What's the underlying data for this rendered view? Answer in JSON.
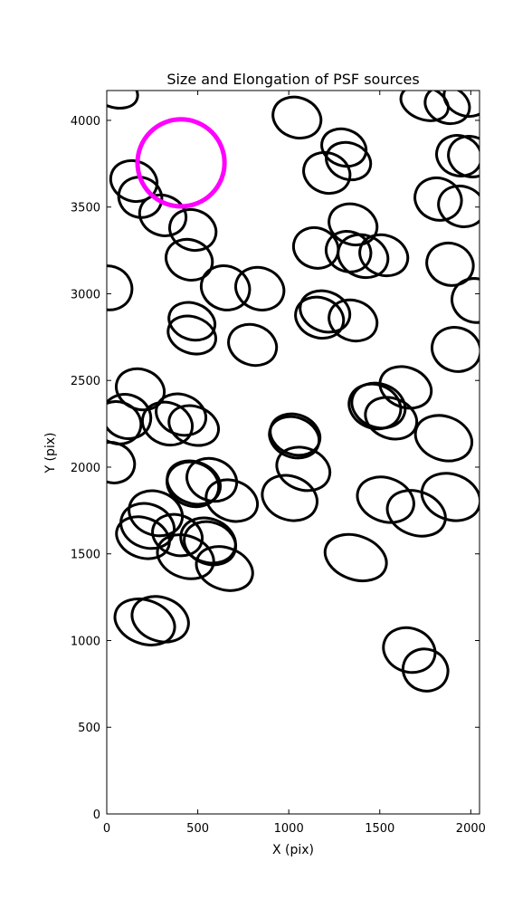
{
  "chart_data": {
    "type": "ellipse",
    "title": "Size and Elongation of PSF sources",
    "xlabel": "X (pix)",
    "ylabel": "Y (pix)",
    "xlim": [
      0,
      2048
    ],
    "ylim": [
      0,
      4172
    ],
    "xticks": [
      0,
      500,
      1000,
      1500,
      2000
    ],
    "yticks": [
      0,
      500,
      1000,
      1500,
      2000,
      2500,
      3000,
      3500,
      4000
    ],
    "series": [
      {
        "color": "#000000",
        "linewidth": 3,
        "angle": -20,
        "x": [
          35,
          1045,
          1303,
          1328,
          1209,
          149,
          184,
          308,
          473,
          453,
          1353,
          1149,
          1328,
          1408,
          1522,
          10,
          652,
          841,
          1199,
          1169,
          1353,
          468,
          468,
          801,
          1746,
          1871,
          1975,
          1935,
          2000,
          1821,
          1950,
          1886,
          2025,
          1920,
          184,
          109,
          60,
          30,
          408,
          333,
          478,
          1035,
          1030,
          1080,
          1005,
          1642,
          1493,
          1473,
          1562,
          1851,
          478,
          473,
          577,
          687,
          269,
          224,
          199,
          388,
          557,
          567,
          433,
          647,
          1532,
          1701,
          1891,
          1368,
          294,
          209,
          1662,
          1751
        ],
        "y": [
          4172,
          4016,
          3843,
          3765,
          3697,
          3650,
          3556,
          3452,
          3368,
          3196,
          3400,
          3264,
          3243,
          3217,
          3222,
          3034,
          3034,
          3029,
          2898,
          2862,
          2846,
          2841,
          2762,
          2705,
          4099,
          4089,
          4131,
          3796,
          3791,
          3546,
          3504,
          3170,
          2961,
          2679,
          2449,
          2292,
          2256,
          2026,
          2303,
          2251,
          2240,
          2188,
          2172,
          1990,
          1822,
          2460,
          2355,
          2350,
          2282,
          2167,
          1911,
          1901,
          1927,
          1807,
          1734,
          1661,
          1593,
          1608,
          1577,
          1561,
          1483,
          1415,
          1812,
          1734,
          1828,
          1478,
          1123,
          1107,
          945,
          830
        ],
        "width": [
          279,
          269,
          249,
          249,
          259,
          259,
          239,
          259,
          259,
          259,
          269,
          249,
          249,
          279,
          269,
          259,
          269,
          269,
          279,
          269,
          269,
          259,
          269,
          269,
          269,
          249,
          249,
          249,
          249,
          259,
          259,
          259,
          259,
          269,
          269,
          269,
          259,
          249,
          279,
          279,
          279,
          279,
          279,
          299,
          308,
          289,
          299,
          289,
          289,
          318,
          299,
          289,
          279,
          289,
          299,
          299,
          299,
          279,
          308,
          289,
          318,
          318,
          318,
          328,
          328,
          348,
          318,
          338,
          289,
          249
        ],
        "height": [
          179,
          219,
          199,
          199,
          219,
          219,
          219,
          219,
          219,
          219,
          219,
          219,
          219,
          229,
          219,
          239,
          239,
          229,
          219,
          219,
          219,
          199,
          199,
          219,
          179,
          199,
          199,
          219,
          219,
          229,
          219,
          229,
          239,
          239,
          219,
          239,
          229,
          219,
          219,
          229,
          209,
          219,
          219,
          229,
          239,
          219,
          239,
          239,
          219,
          239,
          229,
          239,
          229,
          219,
          239,
          239,
          219,
          219,
          239,
          229,
          229,
          229,
          239,
          239,
          249,
          239,
          239,
          239,
          239,
          229
        ]
      },
      {
        "color": "#ff00ff",
        "linewidth": 5,
        "angle": 0,
        "x": [
          408
        ],
        "y": [
          3755
        ],
        "width": [
          478
        ],
        "height": [
          478
        ]
      }
    ]
  }
}
